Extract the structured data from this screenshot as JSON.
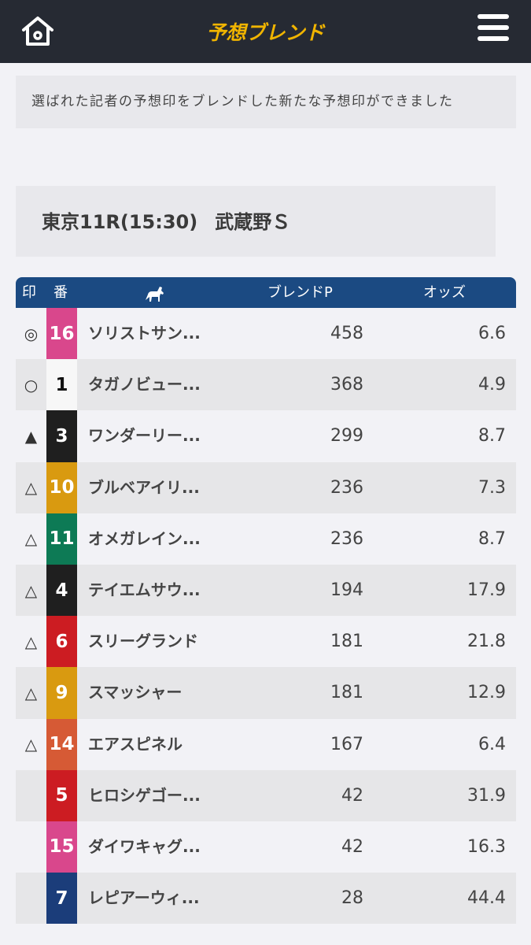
{
  "header": {
    "title": "予想ブレンド",
    "home_icon": "home-icon",
    "menu_icon": "hamburger-menu-icon"
  },
  "notice": "選ばれた記者の予想印をブレンドした新たな予想印ができました",
  "race": {
    "info": "東京11R(15:30)",
    "name": "武蔵野Ｓ"
  },
  "table": {
    "headers": {
      "mark": "印",
      "number": "番",
      "horse_icon": "horse-icon",
      "blend_points": "ブレンドP",
      "odds": "オッズ"
    },
    "rows": [
      {
        "mark": "◎",
        "number": "16",
        "name": "ソリストサン...",
        "points": "458",
        "odds": "6.6",
        "color": "#d9478c"
      },
      {
        "mark": "○",
        "number": "1",
        "name": "タガノビュー...",
        "points": "368",
        "odds": "4.9",
        "color": "#f7f7f7"
      },
      {
        "mark": "▲",
        "number": "3",
        "name": "ワンダーリー...",
        "points": "299",
        "odds": "8.7",
        "color": "#1f1f1f"
      },
      {
        "mark": "△",
        "number": "10",
        "name": "ブルベアイリ...",
        "points": "236",
        "odds": "7.3",
        "color": "#d99a10"
      },
      {
        "mark": "△",
        "number": "11",
        "name": "オメガレイン...",
        "points": "236",
        "odds": "8.7",
        "color": "#0d7a55"
      },
      {
        "mark": "△",
        "number": "4",
        "name": "テイエムサウ...",
        "points": "194",
        "odds": "17.9",
        "color": "#1f1f1f"
      },
      {
        "mark": "△",
        "number": "6",
        "name": "スリーグランド",
        "points": "181",
        "odds": "21.8",
        "color": "#cc1c22"
      },
      {
        "mark": "△",
        "number": "9",
        "name": "スマッシャー",
        "points": "181",
        "odds": "12.9",
        "color": "#d99a10"
      },
      {
        "mark": "△",
        "number": "14",
        "name": "エアスピネル",
        "points": "167",
        "odds": "6.4",
        "color": "#d65a35"
      },
      {
        "mark": "",
        "number": "5",
        "name": "ヒロシゲゴー...",
        "points": "42",
        "odds": "31.9",
        "color": "#cc1c22"
      },
      {
        "mark": "",
        "number": "15",
        "name": "ダイワキャグ...",
        "points": "42",
        "odds": "16.3",
        "color": "#d9478c"
      },
      {
        "mark": "",
        "number": "7",
        "name": "レピアーウィ...",
        "points": "28",
        "odds": "44.4",
        "color": "#1b3d7a"
      }
    ]
  },
  "colors": {
    "topbar": "#262a33",
    "title": "#f0b400",
    "table_header": "#1b4a82"
  }
}
